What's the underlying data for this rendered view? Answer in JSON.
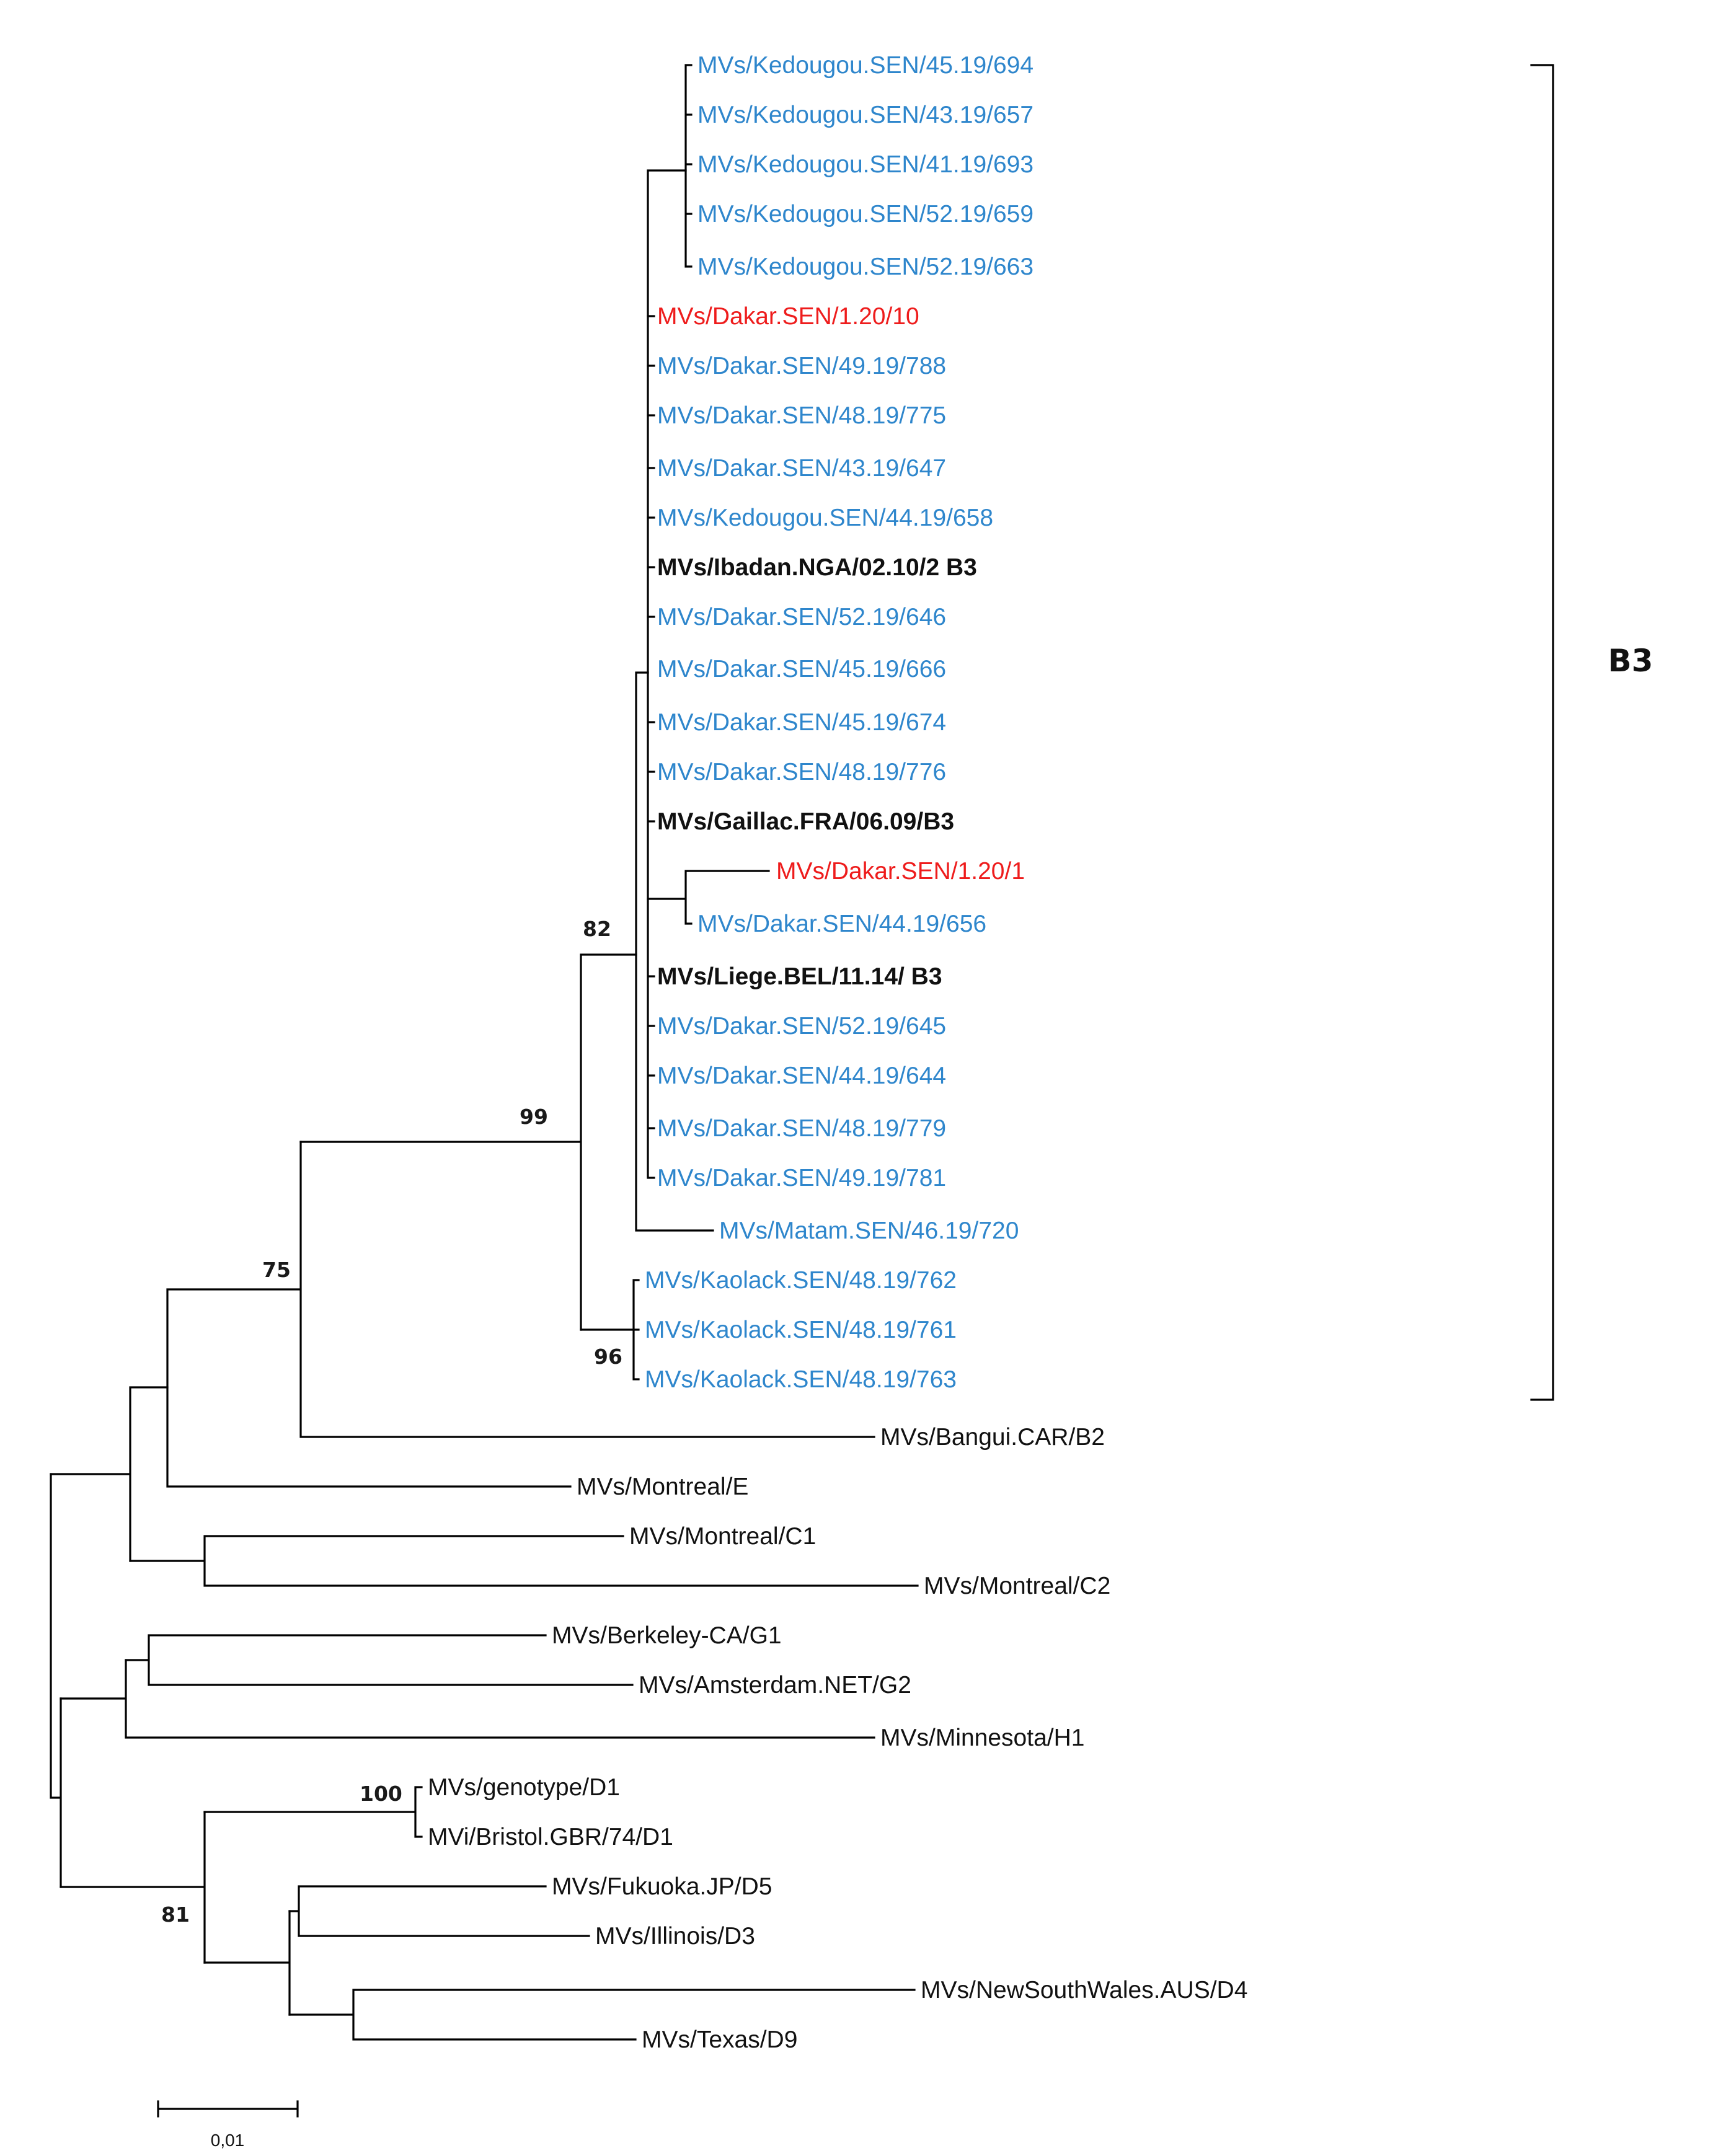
{
  "colors": {
    "study_blue": "#2e86cc",
    "study_red": "#ee1c1c",
    "reference": "#111111",
    "branch": "#000000"
  },
  "taxa": {
    "t1": {
      "label": "MVs/Kedougou.SEN/45.19/694",
      "color": "#2e86cc"
    },
    "t2": {
      "label": "MVs/Kedougou.SEN/43.19/657",
      "color": "#2e86cc"
    },
    "t3": {
      "label": "MVs/Kedougou.SEN/41.19/693",
      "color": "#2e86cc"
    },
    "t4": {
      "label": "MVs/Kedougou.SEN/52.19/659",
      "color": "#2e86cc"
    },
    "t5": {
      "label": "MVs/Kedougou.SEN/52.19/663",
      "color": "#2e86cc"
    },
    "t6": {
      "label": "MVs/Dakar.SEN/1.20/10",
      "color": "#ee1c1c"
    },
    "t7": {
      "label": "MVs/Dakar.SEN/49.19/788",
      "color": "#2e86cc"
    },
    "t8": {
      "label": "MVs/Dakar.SEN/48.19/775",
      "color": "#2e86cc"
    },
    "t9": {
      "label": "MVs/Dakar.SEN/43.19/647",
      "color": "#2e86cc"
    },
    "t10": {
      "label": "MVs/Kedougou.SEN/44.19/658",
      "color": "#2e86cc"
    },
    "t11": {
      "label": "MVs/Ibadan.NGA/02.10/2 B3",
      "color": "#111111"
    },
    "t12": {
      "label": "MVs/Dakar.SEN/52.19/646",
      "color": "#2e86cc"
    },
    "t13": {
      "label": "MVs/Dakar.SEN/45.19/666",
      "color": "#2e86cc"
    },
    "t14": {
      "label": "MVs/Dakar.SEN/45.19/674",
      "color": "#2e86cc"
    },
    "t15": {
      "label": "MVs/Dakar.SEN/48.19/776",
      "color": "#2e86cc"
    },
    "t16": {
      "label": "MVs/Gaillac.FRA/06.09/B3",
      "color": "#111111"
    },
    "t17": {
      "label": "MVs/Dakar.SEN/1.20/1",
      "color": "#ee1c1c"
    },
    "t18": {
      "label": "MVs/Dakar.SEN/44.19/656",
      "color": "#2e86cc"
    },
    "t19": {
      "label": "MVs/Liege.BEL/11.14/ B3",
      "color": "#111111"
    },
    "t20": {
      "label": "MVs/Dakar.SEN/52.19/645",
      "color": "#2e86cc"
    },
    "t21": {
      "label": "MVs/Dakar.SEN/44.19/644",
      "color": "#2e86cc"
    },
    "t22": {
      "label": "MVs/Dakar.SEN/48.19/779",
      "color": "#2e86cc"
    },
    "t23": {
      "label": "MVs/Dakar.SEN/49.19/781",
      "color": "#2e86cc"
    },
    "t24": {
      "label": "MVs/Matam.SEN/46.19/720",
      "color": "#2e86cc"
    },
    "t25": {
      "label": "MVs/Kaolack.SEN/48.19/762",
      "color": "#2e86cc"
    },
    "t26": {
      "label": "MVs/Kaolack.SEN/48.19/761",
      "color": "#2e86cc"
    },
    "t27": {
      "label": "MVs/Kaolack.SEN/48.19/763",
      "color": "#2e86cc"
    },
    "t28": {
      "label": "MVs/Bangui.CAR/B2",
      "color": "#111111"
    },
    "t29": {
      "label": "MVs/Montreal/E",
      "color": "#111111"
    },
    "t30": {
      "label": "MVs/Montreal/C1",
      "color": "#111111"
    },
    "t31": {
      "label": "MVs/Montreal/C2",
      "color": "#111111"
    },
    "t32": {
      "label": "MVs/Berkeley-CA/G1",
      "color": "#111111"
    },
    "t33": {
      "label": "MVs/Amsterdam.NET/G2",
      "color": "#111111"
    },
    "t34": {
      "label": "MVs/Minnesota/H1",
      "color": "#111111"
    },
    "t35": {
      "label": "MVs/genotype/D1",
      "color": "#111111"
    },
    "t36": {
      "label": "MVi/Bristol.GBR/74/D1",
      "color": "#111111"
    },
    "t37": {
      "label": "MVs/Fukuoka.JP/D5",
      "color": "#111111"
    },
    "t38": {
      "label": "MVs/Illinois/D3",
      "color": "#111111"
    },
    "t39": {
      "label": "MVs/NewSouthWales.AUS/D4",
      "color": "#111111"
    },
    "t40": {
      "label": "MVs/Texas/D9",
      "color": "#111111"
    }
  },
  "bootstrap": {
    "b82": "82",
    "b99": "99",
    "b75": "75",
    "b96": "96",
    "b100": "100",
    "b81": "81"
  },
  "clade": {
    "name": "B3"
  },
  "scale_bar": {
    "label": "0,01"
  }
}
